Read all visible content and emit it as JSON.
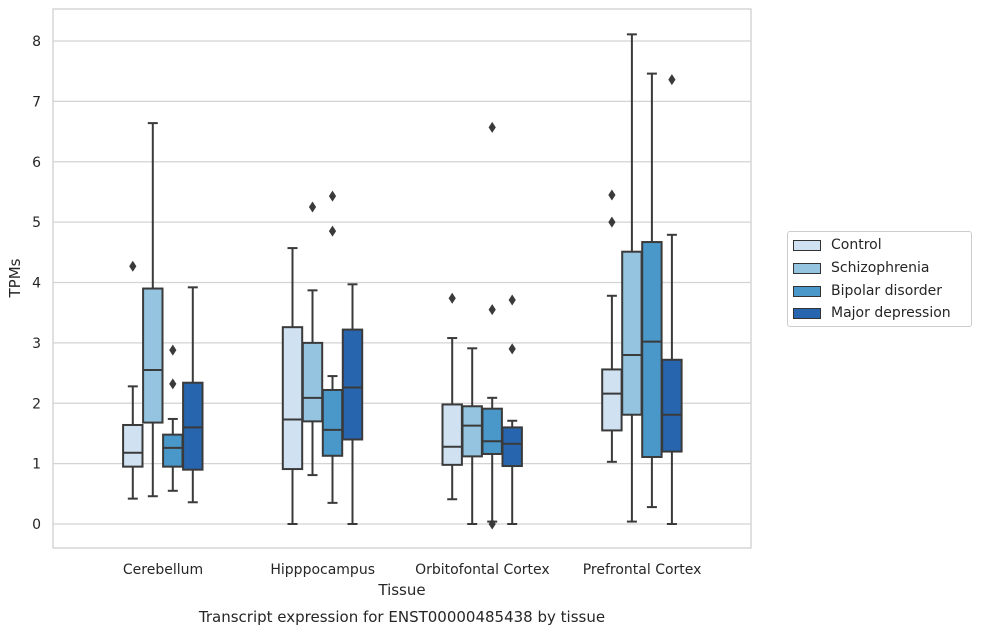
{
  "chart_data": {
    "type": "boxplot",
    "title": "Transcript expression for ENST00000485438 by tissue",
    "xlabel": "Tissue",
    "ylabel": "TPMs",
    "ylim": [
      -0.4,
      8.5
    ],
    "yticks": [
      0,
      1,
      2,
      3,
      4,
      5,
      6,
      7,
      8
    ],
    "grid": "horizontal",
    "legend_position": "right",
    "categories": [
      "Cerebellum",
      "Hipppocampus",
      "Orbitofontal Cortex",
      "Prefrontal Cortex"
    ],
    "series": [
      {
        "name": "Control",
        "color": "#d0e1f2",
        "boxes": [
          {
            "whislo": 0.42,
            "q1": 0.95,
            "med": 1.18,
            "q3": 1.64,
            "whishi": 2.28,
            "fliers": [
              4.27
            ]
          },
          {
            "whislo": 0.0,
            "q1": 0.91,
            "med": 1.73,
            "q3": 3.26,
            "whishi": 4.57,
            "fliers": []
          },
          {
            "whislo": 0.41,
            "q1": 0.98,
            "med": 1.28,
            "q3": 1.98,
            "whishi": 3.08,
            "fliers": [
              3.74
            ]
          },
          {
            "whislo": 1.03,
            "q1": 1.55,
            "med": 2.16,
            "q3": 2.56,
            "whishi": 3.78,
            "fliers": [
              5.0,
              5.45
            ]
          }
        ]
      },
      {
        "name": "Schizophrenia",
        "color": "#94c4df",
        "boxes": [
          {
            "whislo": 0.46,
            "q1": 1.68,
            "med": 2.55,
            "q3": 3.9,
            "whishi": 6.64,
            "fliers": []
          },
          {
            "whislo": 0.81,
            "q1": 1.7,
            "med": 2.09,
            "q3": 3.0,
            "whishi": 3.87,
            "fliers": [
              5.25
            ]
          },
          {
            "whislo": 0.0,
            "q1": 1.12,
            "med": 1.63,
            "q3": 1.95,
            "whishi": 2.91,
            "fliers": []
          },
          {
            "whislo": 0.04,
            "q1": 1.81,
            "med": 2.8,
            "q3": 4.51,
            "whishi": 8.11,
            "fliers": []
          }
        ]
      },
      {
        "name": "Bipolar disorder",
        "color": "#4a98c9",
        "boxes": [
          {
            "whislo": 0.55,
            "q1": 0.95,
            "med": 1.26,
            "q3": 1.48,
            "whishi": 1.74,
            "fliers": [
              2.32,
              2.88
            ]
          },
          {
            "whislo": 0.35,
            "q1": 1.13,
            "med": 1.56,
            "q3": 2.22,
            "whishi": 2.45,
            "fliers": [
              4.85,
              5.43
            ]
          },
          {
            "whislo": 0.04,
            "q1": 1.16,
            "med": 1.37,
            "q3": 1.91,
            "whishi": 2.09,
            "fliers": [
              0.0,
              3.55,
              6.57
            ]
          },
          {
            "whislo": 0.28,
            "q1": 1.11,
            "med": 3.02,
            "q3": 4.67,
            "whishi": 7.46,
            "fliers": []
          }
        ]
      },
      {
        "name": "Major depression",
        "color": "#2766ae",
        "boxes": [
          {
            "whislo": 0.36,
            "q1": 0.9,
            "med": 1.6,
            "q3": 2.34,
            "whishi": 3.92,
            "fliers": []
          },
          {
            "whislo": 0.0,
            "q1": 1.4,
            "med": 2.26,
            "q3": 3.22,
            "whishi": 3.97,
            "fliers": []
          },
          {
            "whislo": 0.0,
            "q1": 0.96,
            "med": 1.33,
            "q3": 1.6,
            "whishi": 1.71,
            "fliers": [
              2.9,
              3.71
            ]
          },
          {
            "whislo": 0.0,
            "q1": 1.2,
            "med": 1.81,
            "q3": 2.72,
            "whishi": 4.79,
            "fliers": [
              7.36
            ]
          }
        ]
      }
    ]
  }
}
